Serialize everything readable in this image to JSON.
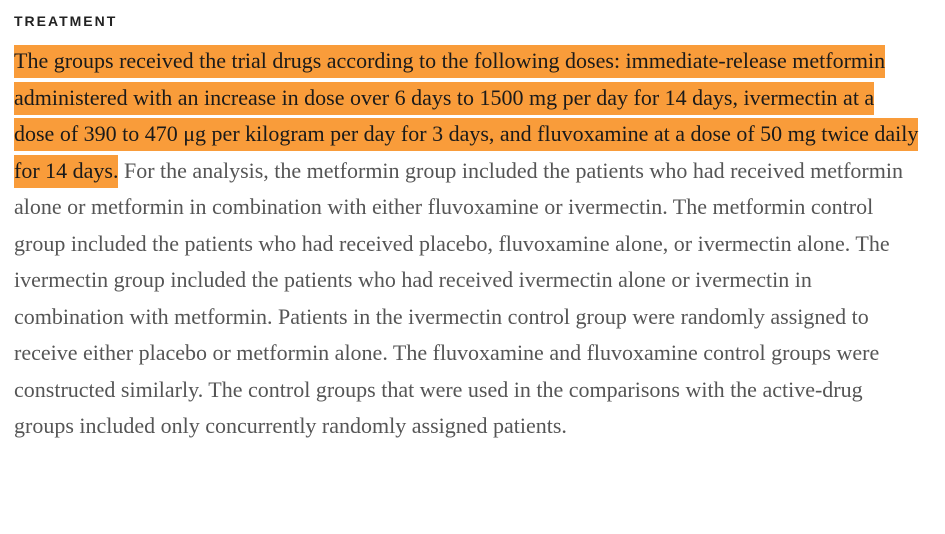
{
  "section": {
    "heading": "TREATMENT",
    "highlighted_text": "The groups received the trial drugs according to the following doses: immediate-release metformin administered with an increase in dose over 6 days to 1500 mg per day for 14 days, ivermectin at a dose of 390 to 470 μg per kilogram per day for 3 days, and fluvoxamine at a dose of 50 mg twice daily for 14 days.",
    "body_text": " For the analysis, the metformin group included the patients who had received metformin alone or metformin in combination with either fluvoxamine or ivermectin. The metformin control group included the patients who had received placebo, fluvoxamine alone, or ivermectin alone. The ivermectin group included the patients who had received ivermectin alone or ivermectin in combination with metformin. Patients in the ivermectin control group were randomly assigned to receive either placebo or metformin alone. The fluvoxamine and fluvoxamine control groups were constructed similarly. The control groups that were used in the comparisons with the active-drug groups included only concurrently randomly assigned patients."
  },
  "colors": {
    "highlight": "#f99c3a",
    "body_text": "#555555",
    "heading_text": "#222222"
  }
}
